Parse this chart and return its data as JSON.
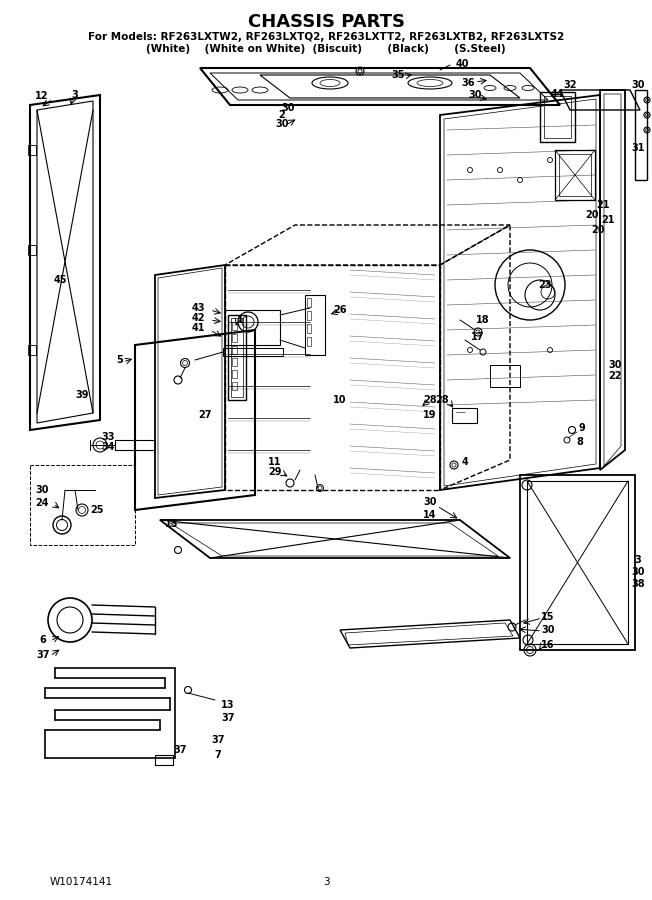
{
  "title": "CHASSIS PARTS",
  "subtitle_line1": "For Models: RF263LXTW2, RF263LXTQ2, RF263LXTT2, RF263LXTB2, RF263LXTS2",
  "subtitle_line2": "(White)    (White on White)  (Biscuit)       (Black)       (S.Steel)",
  "footer_left": "W10174141",
  "footer_center": "3",
  "bg_color": "#ffffff",
  "fig_width": 6.52,
  "fig_height": 9.0,
  "dpi": 100
}
